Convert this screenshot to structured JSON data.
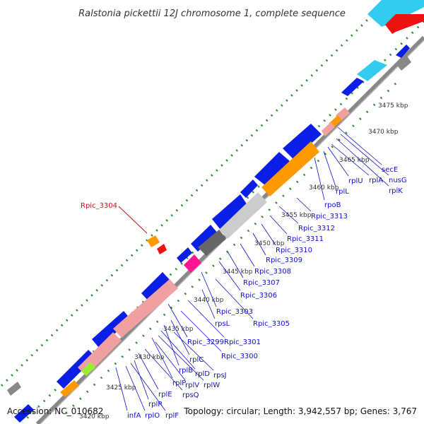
{
  "title": "Ralstonia pickettii 12J chromosome 1, complete sequence",
  "footer": {
    "accession": "Accession: NC_010682",
    "topology": "Topology: circular; Length: 3,942,557 bp; Genes: 3,767"
  },
  "ticks": [
    "3475 kbp",
    "3470 kbp",
    "3465 kbp",
    "3460 kbp",
    "3455 kbp",
    "3450 kbp",
    "3445 kbp",
    "3440 kbp",
    "3435 kbp",
    "3430 kbp",
    "3425 kbp",
    "3420 kbp"
  ],
  "highlight_gene": "Rpic_3304",
  "gene_labels": [
    "secE",
    "nusG",
    "rplK",
    "rplA",
    "rplU",
    "rplL",
    "rpoB",
    "Rpic_3313",
    "Rpic_3312",
    "Rpic_3311",
    "Rpic_3310",
    "Rpic_3309",
    "Rpic_3308",
    "Rpic_3307",
    "Rpic_3306",
    "Rpic_3303",
    "Rpic_3305",
    "rpsL",
    "Rpic_3299",
    "Rpic_3301",
    "Rpic_3300",
    "rplC",
    "rpsJ",
    "rplB",
    "rplD",
    "rplW",
    "rplP",
    "rplV",
    "rpsQ",
    "rplE",
    "rplR",
    "infA",
    "rplO",
    "rplF"
  ],
  "colors": {
    "forward_cds": "#0a1ee6",
    "reverse_cds": "#0a1ee6",
    "ribosomal": "#f0a0a0",
    "rpo": "#ff9900",
    "grey": "#888888",
    "light_grey": "#cccccc",
    "magenta": "#ff1493",
    "green": "#99ee33",
    "cyan": "#33ccee",
    "red": "#ee1111",
    "backbone": "#888888",
    "gc_dots": "#2a8a2a",
    "label": "#1010cc",
    "highlight": "#cc1111"
  }
}
